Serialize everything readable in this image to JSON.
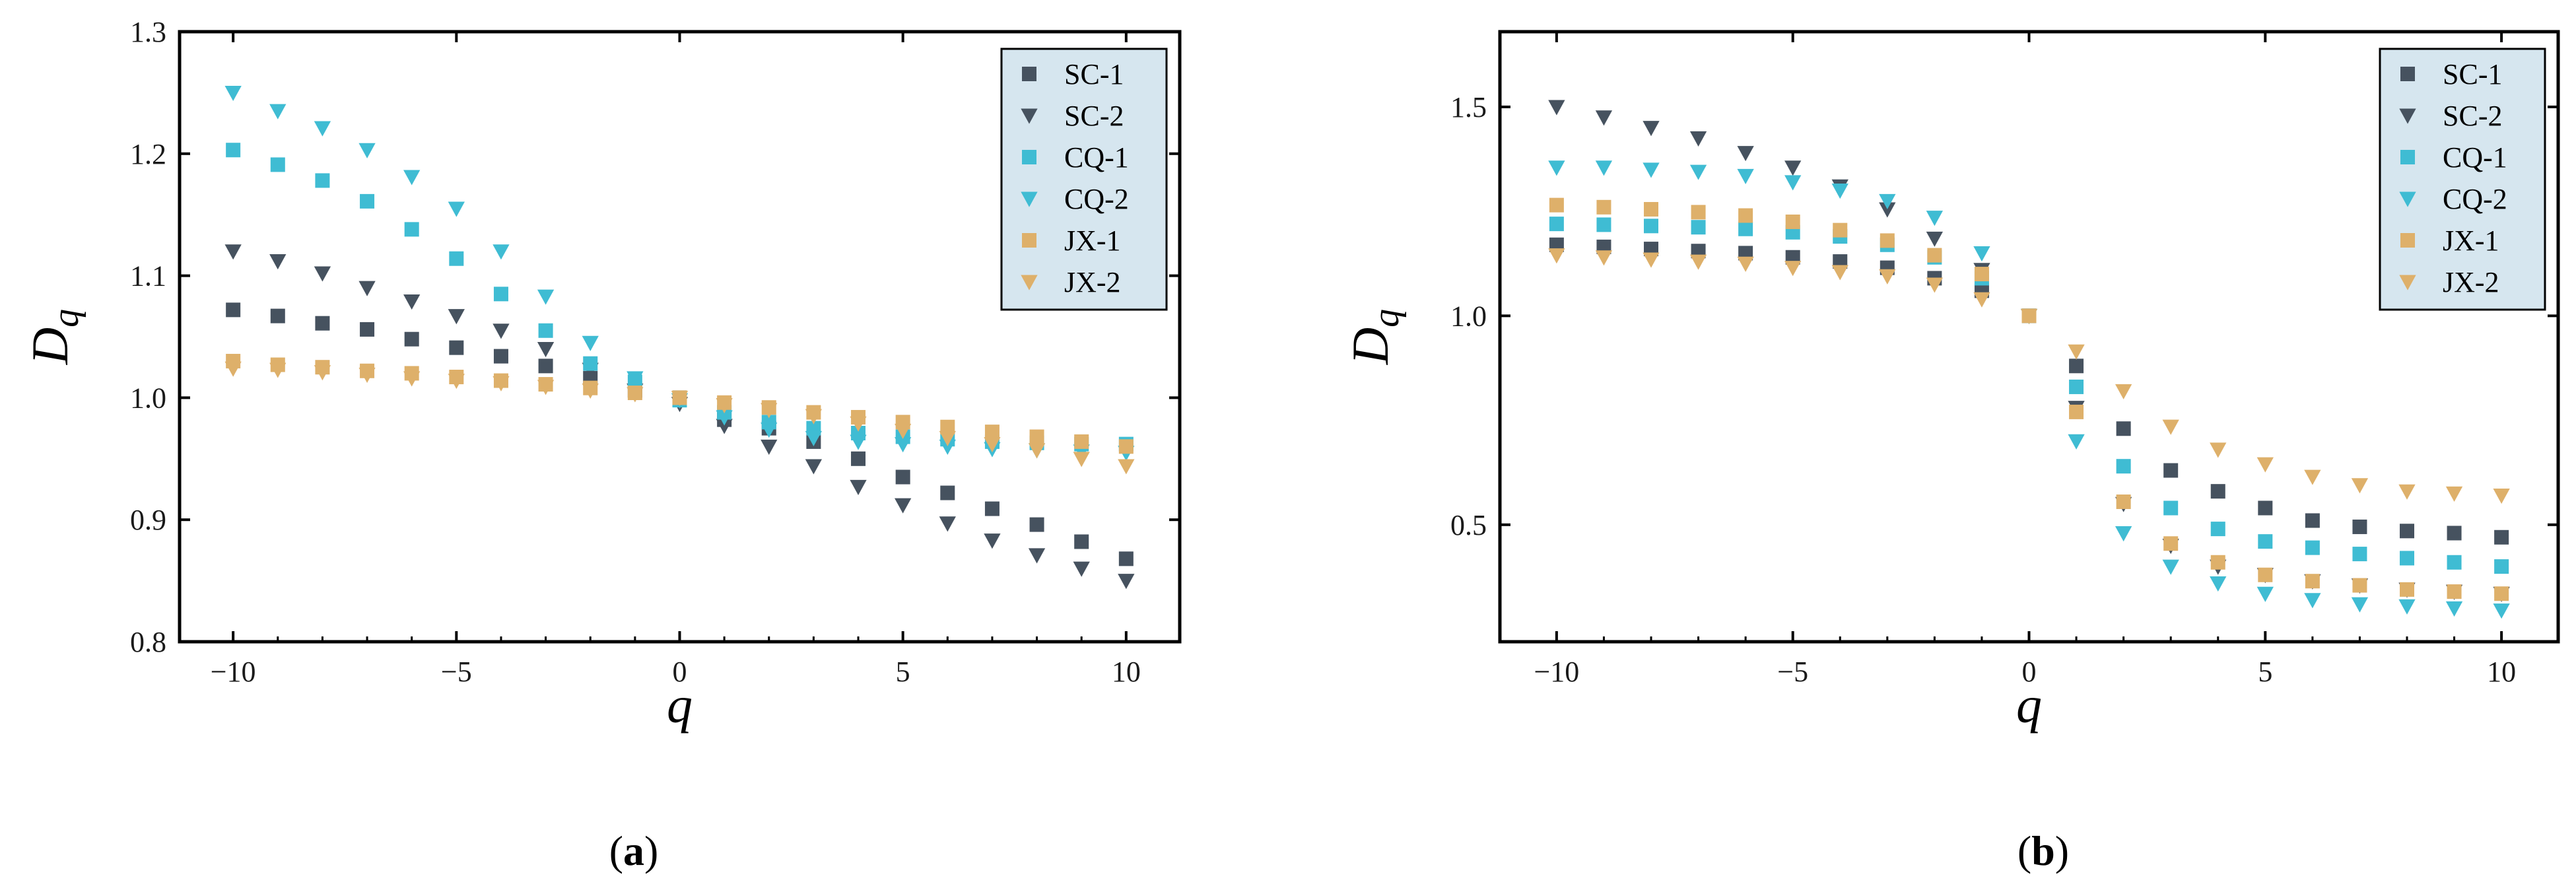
{
  "colors": {
    "SC": "#46525f",
    "CQ": "#3fbcd3",
    "JX": "#deb06a",
    "legend_bg": "#d6e6ef"
  },
  "chart_data": [
    {
      "type": "scatter",
      "panel_label": "a",
      "xlabel": "q",
      "ylabel_main": "D",
      "ylabel_sub": "q",
      "xlim": [
        -11.2,
        11.2
      ],
      "ylim": [
        0.8,
        1.3
      ],
      "xticks": [
        -10,
        -5,
        0,
        5,
        10
      ],
      "xtick_labels": [
        "−10",
        "−5",
        "0",
        "5",
        "10"
      ],
      "yticks": [
        0.8,
        0.9,
        1.0,
        1.1,
        1.2,
        1.3
      ],
      "ytick_labels": [
        "0.8",
        "0.9",
        "1.0",
        "1.1",
        "1.2",
        "1.3"
      ],
      "grid": false,
      "legend_position": "top-right",
      "x": [
        -10,
        -9,
        -8,
        -7,
        -6,
        -5,
        -4,
        -3,
        -2,
        -1,
        0,
        1,
        2,
        3,
        4,
        5,
        6,
        7,
        8,
        9,
        10
      ],
      "series": [
        {
          "name": "SC-1",
          "marker": "square",
          "color": "#46525f",
          "values": [
            1.072,
            1.067,
            1.061,
            1.056,
            1.048,
            1.041,
            1.034,
            1.026,
            1.016,
            1.006,
            1.0,
            0.982,
            0.975,
            0.964,
            0.95,
            0.935,
            0.922,
            0.909,
            0.896,
            0.882,
            0.868
          ]
        },
        {
          "name": "SC-2",
          "marker": "triangle-down",
          "color": "#46525f",
          "values": [
            1.12,
            1.112,
            1.102,
            1.09,
            1.079,
            1.067,
            1.055,
            1.04,
            1.023,
            1.006,
            0.995,
            0.977,
            0.96,
            0.944,
            0.927,
            0.912,
            0.897,
            0.883,
            0.871,
            0.86,
            0.85
          ]
        },
        {
          "name": "CQ-1",
          "marker": "square",
          "color": "#3fbcd3",
          "values": [
            1.203,
            1.191,
            1.178,
            1.161,
            1.138,
            1.114,
            1.085,
            1.055,
            1.028,
            1.013,
            0.998,
            0.988,
            0.98,
            0.975,
            0.971,
            0.968,
            0.966,
            0.964,
            0.963,
            0.962,
            0.962
          ]
        },
        {
          "name": "CQ-2",
          "marker": "triangle-down",
          "color": "#3fbcd3",
          "values": [
            1.25,
            1.235,
            1.221,
            1.203,
            1.181,
            1.155,
            1.12,
            1.083,
            1.045,
            1.016,
            0.998,
            0.984,
            0.974,
            0.967,
            0.964,
            0.962,
            0.96,
            0.958,
            0.957,
            0.956,
            0.955
          ]
        },
        {
          "name": "JX-1",
          "marker": "square",
          "color": "#deb06a",
          "values": [
            1.03,
            1.027,
            1.025,
            1.022,
            1.02,
            1.017,
            1.014,
            1.011,
            1.008,
            1.004,
            1.0,
            0.996,
            0.992,
            0.988,
            0.984,
            0.98,
            0.976,
            0.972,
            0.968,
            0.964,
            0.96
          ]
        },
        {
          "name": "JX-2",
          "marker": "triangle-down",
          "color": "#deb06a",
          "values": [
            1.024,
            1.023,
            1.021,
            1.019,
            1.016,
            1.014,
            1.012,
            1.009,
            1.006,
            1.003,
            1.0,
            0.994,
            0.99,
            0.985,
            0.979,
            0.973,
            0.967,
            0.962,
            0.957,
            0.95,
            0.944
          ]
        }
      ]
    },
    {
      "type": "scatter",
      "panel_label": "b",
      "xlabel": "q",
      "ylabel_main": "D",
      "ylabel_sub": "q",
      "xlim": [
        -11.2,
        11.2
      ],
      "ylim": [
        0.22,
        1.68
      ],
      "xticks": [
        -10,
        -5,
        0,
        5,
        10
      ],
      "xtick_labels": [
        "−10",
        "−5",
        "0",
        "5",
        "10"
      ],
      "yticks": [
        0.5,
        1.0,
        1.5
      ],
      "ytick_labels": [
        "0.5",
        "1.0",
        "1.5"
      ],
      "grid": false,
      "legend_position": "top-right",
      "x": [
        -10,
        -9,
        -8,
        -7,
        -6,
        -5,
        -4,
        -3,
        -2,
        -1,
        0,
        1,
        2,
        3,
        4,
        5,
        6,
        7,
        8,
        9,
        10
      ],
      "series": [
        {
          "name": "SC-1",
          "marker": "square",
          "color": "#46525f",
          "values": [
            1.17,
            1.165,
            1.16,
            1.155,
            1.15,
            1.14,
            1.13,
            1.115,
            1.09,
            1.06,
            1.0,
            0.88,
            0.73,
            0.63,
            0.58,
            0.54,
            0.51,
            0.495,
            0.485,
            0.48,
            0.47
          ]
        },
        {
          "name": "SC-2",
          "marker": "triangle-down",
          "color": "#46525f",
          "values": [
            1.5,
            1.475,
            1.45,
            1.425,
            1.39,
            1.355,
            1.31,
            1.255,
            1.185,
            1.11,
            1.0,
            0.78,
            0.55,
            0.45,
            0.4,
            0.38,
            0.365,
            0.355,
            0.345,
            0.34,
            0.335
          ]
        },
        {
          "name": "CQ-1",
          "marker": "square",
          "color": "#3fbcd3",
          "values": [
            1.22,
            1.218,
            1.215,
            1.212,
            1.208,
            1.2,
            1.19,
            1.17,
            1.14,
            1.09,
            1.0,
            0.83,
            0.64,
            0.54,
            0.49,
            0.46,
            0.445,
            0.43,
            0.42,
            0.41,
            0.4
          ]
        },
        {
          "name": "CQ-2",
          "marker": "triangle-down",
          "color": "#3fbcd3",
          "values": [
            1.355,
            1.355,
            1.35,
            1.345,
            1.335,
            1.32,
            1.3,
            1.275,
            1.235,
            1.15,
            1.0,
            0.7,
            0.48,
            0.4,
            0.36,
            0.335,
            0.32,
            0.31,
            0.305,
            0.3,
            0.295
          ]
        },
        {
          "name": "JX-1",
          "marker": "square",
          "color": "#deb06a",
          "values": [
            1.265,
            1.26,
            1.255,
            1.248,
            1.24,
            1.225,
            1.205,
            1.18,
            1.145,
            1.1,
            1.0,
            0.77,
            0.555,
            0.455,
            0.41,
            0.38,
            0.365,
            0.355,
            0.345,
            0.34,
            0.335
          ]
        },
        {
          "name": "JX-2",
          "marker": "triangle-down",
          "color": "#deb06a",
          "values": [
            1.145,
            1.14,
            1.135,
            1.13,
            1.125,
            1.115,
            1.105,
            1.095,
            1.075,
            1.04,
            1.0,
            0.915,
            0.82,
            0.735,
            0.68,
            0.645,
            0.615,
            0.595,
            0.58,
            0.575,
            0.57
          ]
        }
      ]
    }
  ]
}
